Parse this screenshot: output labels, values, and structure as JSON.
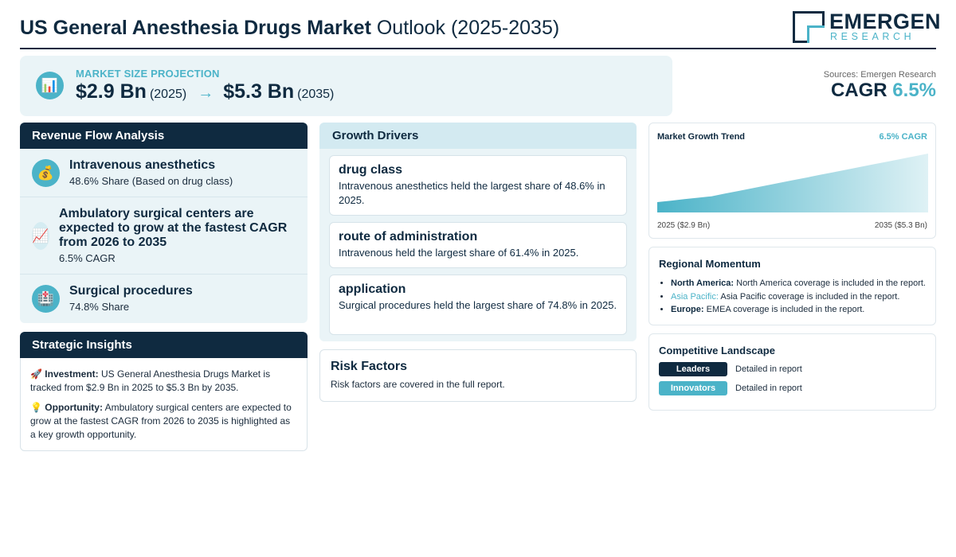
{
  "header": {
    "title_bold": "US General Anesthesia Drugs Market",
    "title_rest": "Outlook (2025-2035)",
    "logo_name": "EMERGEN",
    "logo_sub": "RESEARCH"
  },
  "projection": {
    "icon": "bar-chart-icon",
    "label": "MARKET SIZE PROJECTION",
    "start_value": "$2.9 Bn",
    "start_year": "(2025)",
    "arrow": "→",
    "end_value": "$5.3 Bn",
    "end_year": "(2035)"
  },
  "sources": "Sources: Emergen Research",
  "cagr": {
    "label": "CAGR",
    "value": "6.5%"
  },
  "revenue_flow": {
    "title": "Revenue Flow Analysis",
    "items": [
      {
        "icon": "money-bag-icon",
        "glyph": "💰",
        "title": "Intravenous anesthetics",
        "sub": "48.6% Share (Based on drug class)"
      },
      {
        "icon": "chart-increasing-icon",
        "glyph": "📈",
        "title": "Ambulatory surgical centers are expected to grow at the fastest CAGR from 2026 to 2035",
        "sub": "6.5% CAGR"
      },
      {
        "icon": "hospital-icon",
        "glyph": "🏥",
        "title": "Surgical procedures",
        "sub": "74.8% Share"
      }
    ]
  },
  "strategic": {
    "title": "Strategic Insights",
    "investment_icon": "🚀",
    "investment_label": "Investment:",
    "investment_text": "US General Anesthesia Drugs Market is tracked from $2.9 Bn in 2025 to $5.3 Bn by 2035.",
    "opportunity_icon": "💡",
    "opportunity_label": "Opportunity:",
    "opportunity_text": "Ambulatory surgical centers are expected to grow at the fastest CAGR from 2026 to 2035 is highlighted as a key growth opportunity."
  },
  "drivers": {
    "title": "Growth Drivers",
    "items": [
      {
        "title": "drug class",
        "desc": "Intravenous anesthetics held the largest share of 48.6% in 2025."
      },
      {
        "title": "route of administration",
        "desc": "Intravenous held the largest share of 61.4% in 2025."
      },
      {
        "title": "application",
        "desc": "Surgical procedures held the largest share of 74.8% in 2025."
      }
    ]
  },
  "risk": {
    "title": "Risk Factors",
    "desc": "Risk factors are covered in the full report."
  },
  "trend": {
    "title": "Market Growth Trend",
    "cagr_label": "6.5% CAGR",
    "x_start": "2025 ($2.9 Bn)",
    "x_end": "2035 ($5.3 Bn)",
    "color": "#4bb3c8"
  },
  "chart_data": {
    "type": "area",
    "title": "Market Growth Trend",
    "x": [
      2025,
      2035
    ],
    "y": [
      2.9,
      5.3
    ],
    "unit": "$ Bn"
  },
  "regional": {
    "title": "Regional Momentum",
    "items": [
      {
        "label": "North America:",
        "text": "North America coverage is included in the report."
      },
      {
        "label": "Asia Pacific:",
        "text": "Asia Pacific coverage is included in the report."
      },
      {
        "label": "Europe:",
        "text": "EMEA coverage is included in the report."
      }
    ]
  },
  "competitive": {
    "title": "Competitive Landscape",
    "items": [
      {
        "badge": "Leaders",
        "text": "Detailed in report",
        "color": "#0f2a40"
      },
      {
        "badge": "Innovators",
        "text": "Detailed in report",
        "color": "#4bb3c8"
      }
    ]
  }
}
